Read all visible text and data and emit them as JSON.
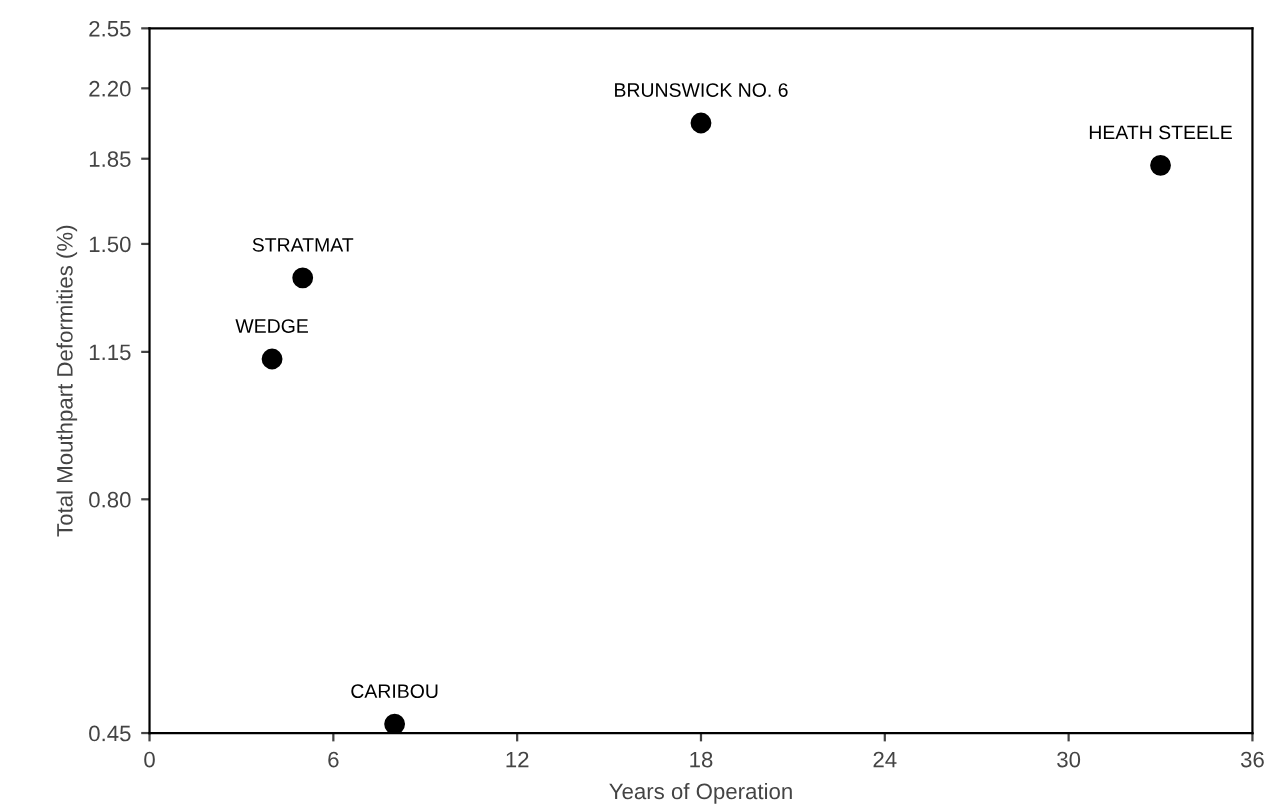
{
  "chart_data": {
    "type": "scatter",
    "xlabel": "Years of Operation",
    "ylabel": "Total Mouthpart Deformities (%)",
    "x": [
      4,
      5,
      8,
      18,
      33
    ],
    "values": [
      1.13,
      1.38,
      0.46,
      2.02,
      1.82
    ],
    "color": "#000000",
    "marker": "circle",
    "log": "y",
    "xlim": [
      0,
      36
    ],
    "xticks": [
      0,
      6,
      12,
      18,
      24,
      30,
      36
    ],
    "ylim": [
      0.45,
      2.55
    ],
    "yticks": [
      {
        "value": 0.45,
        "label": "0.45"
      },
      {
        "value": 0.8,
        "label": "0.80"
      },
      {
        "value": 1.15,
        "label": "1.15"
      },
      {
        "value": 1.5,
        "label": "1.50"
      },
      {
        "value": 1.85,
        "label": "1.85"
      },
      {
        "value": 2.2,
        "label": "2.20"
      },
      {
        "value": 2.55,
        "label": "2.55"
      }
    ],
    "grid": false,
    "annotations": [
      {
        "text": "WEDGE",
        "x": 4,
        "y": 1.13
      },
      {
        "text": "STRATMAT",
        "x": 5,
        "y": 1.38
      },
      {
        "text": "CARIBOU",
        "x": 8,
        "y": 0.46
      },
      {
        "text": "BRUNSWICK NO. 6",
        "x": 18,
        "y": 2.02
      },
      {
        "text": "HEATH STEELE",
        "x": 33,
        "y": 1.82
      }
    ]
  }
}
